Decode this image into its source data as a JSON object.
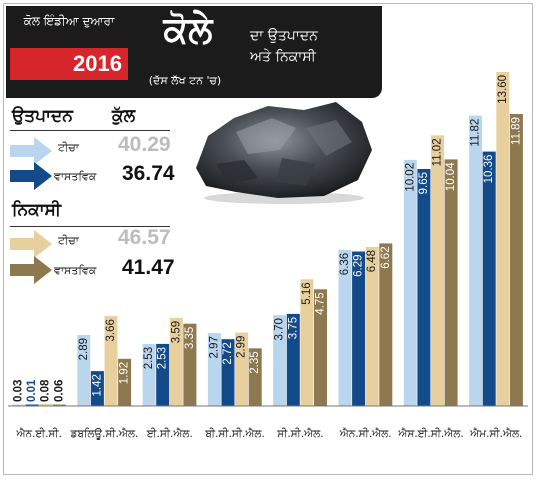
{
  "header": {
    "subtitle": "ਕੋਲ ਇੰਡੀਆ ਦੁਆਰਾ",
    "year": "2016",
    "title": "ਕੋਲੇ",
    "description_line1": "ਦਾ ਉਤਪਾਦਨ",
    "description_line2": "ਅਤੇ ਨਿਕਾਸੀ",
    "unit": "(ਦੱਸ ਲੱਖ ਟਨ 'ਚ)"
  },
  "summary": {
    "production": {
      "heading": "ਉਤਪਾਦਨ",
      "total_label": "ਕੁੱਲ",
      "target_label": "ਟੀਚਾ",
      "target_value": "40.29",
      "actual_label": "ਵਾਸਤਵਿਕ",
      "actual_value": "36.74"
    },
    "dispatch": {
      "heading": "ਨਿਕਾਸੀ",
      "target_label": "ਟੀਚਾ",
      "target_value": "46.57",
      "actual_label": "ਵਾਸਤਵਿਕ",
      "actual_value": "41.47"
    }
  },
  "colors": {
    "production_target": "#b9d6ee",
    "production_actual": "#134a8a",
    "dispatch_target": "#e8cf9e",
    "dispatch_actual": "#8e7850",
    "banner": "#1b1b1b",
    "year_box": "#d6262b"
  },
  "chart_data": {
    "type": "bar",
    "categories": [
      "ਐਨ.ਈ.ਸੀ.",
      "ਡਬਲਿਊ.ਸੀ.ਐਲ.",
      "ਈ.ਸੀ.ਐਲ.",
      "ਬੀ.ਸੀ.ਸੀ.ਐਲ.",
      "ਸੀ.ਸੀ.ਐਲ.",
      "ਐਨ.ਸੀ.ਐਲ.",
      "ਐਸ.ਈ.ਸੀ.ਐਲ.",
      "ਐਮ.ਸੀ.ਐਲ."
    ],
    "series": [
      {
        "name": "ਉਤਪਾਦਨ ਟੀਚਾ",
        "values": [
          0.03,
          2.89,
          2.53,
          2.97,
          3.7,
          6.36,
          10.02,
          11.82
        ]
      },
      {
        "name": "ਉਤਪਾਦਨ ਵਾਸਤਵਿਕ",
        "values": [
          0.01,
          1.42,
          2.53,
          2.72,
          3.75,
          6.29,
          9.65,
          10.36
        ]
      },
      {
        "name": "ਨਿਕਾਸੀ ਟੀਚਾ",
        "values": [
          0.08,
          3.66,
          3.59,
          2.99,
          5.16,
          6.48,
          11.02,
          13.6
        ]
      },
      {
        "name": "ਨਿਕਾਸੀ ਵਾਸਤਵਿਕ",
        "values": [
          0.06,
          1.92,
          3.35,
          2.35,
          4.75,
          6.62,
          10.04,
          11.89
        ]
      }
    ],
    "value_labels": [
      [
        "0.03",
        "0.01",
        "0.08",
        "0.06"
      ],
      [
        "2.89",
        "1.42",
        "3.66",
        "1.92"
      ],
      [
        "2.53",
        "2.53",
        "3.59",
        "3.35"
      ],
      [
        "2.97",
        "2.72",
        "2.99",
        "2.35"
      ],
      [
        "3.70",
        "3.75",
        "5.16",
        "4.75"
      ],
      [
        "6.36",
        "6.29",
        "6.48",
        "6.62"
      ],
      [
        "10.02",
        "9.65",
        "11.02",
        "10.04"
      ],
      [
        "11.82",
        "10.36",
        "13.60",
        "11.89"
      ]
    ],
    "ylim": [
      0,
      14
    ],
    "grid": false,
    "legend": "left"
  }
}
